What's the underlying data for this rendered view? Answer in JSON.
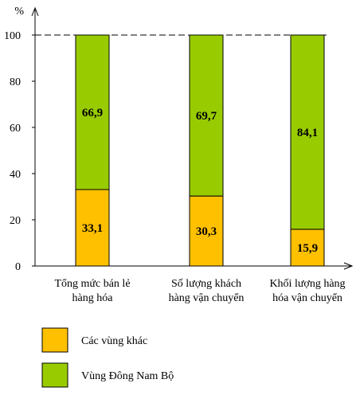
{
  "chart_data": {
    "type": "stacked_bar_percent",
    "y_unit": "%",
    "ylim": [
      0,
      100
    ],
    "y_ticks": [
      "0",
      "20",
      "40",
      "60",
      "80",
      "100"
    ],
    "categories": [
      [
        "Tổng mức bán lẻ",
        "hàng hóa"
      ],
      [
        "Số lượng khách",
        "hàng vận chuyển"
      ],
      [
        "Khối lượng hàng",
        "hóa vận chuyển"
      ]
    ],
    "series": [
      {
        "name": "Các vùng khác",
        "values": [
          33.1,
          30.3,
          15.9
        ],
        "labels": [
          "33,1",
          "30,3",
          "15,9"
        ],
        "color": "#FFC000"
      },
      {
        "name": "Vùng Đông Nam Bộ",
        "values": [
          66.9,
          69.7,
          84.1
        ],
        "labels": [
          "66,9",
          "69,7",
          "84,1"
        ],
        "color": "#99CC00"
      }
    ],
    "reference_line": 100,
    "grid": false,
    "legend_position": "bottom-left"
  }
}
